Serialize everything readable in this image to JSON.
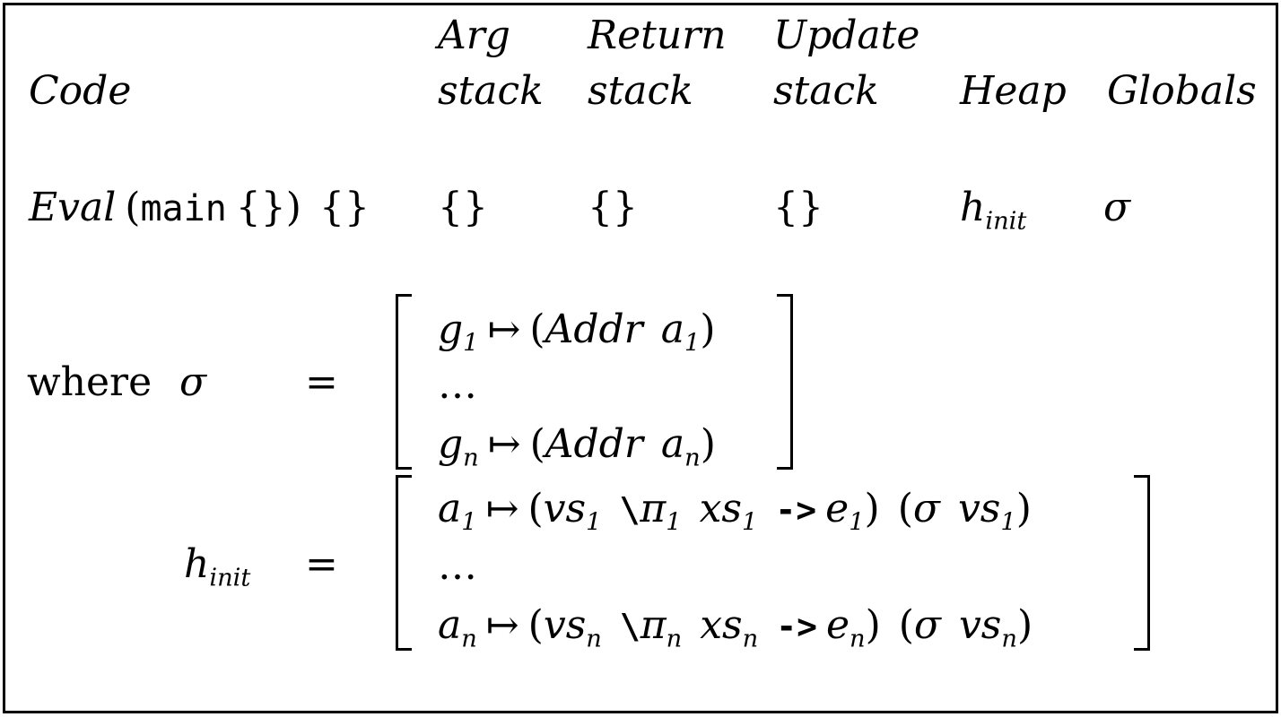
{
  "headers": {
    "code": "Code",
    "arg_top": "Arg",
    "arg_bottom": "stack",
    "return_top": "Return",
    "return_bottom": "stack",
    "update_top": "Update",
    "update_bottom": "stack",
    "heap": "Heap",
    "globals": "Globals"
  },
  "initial_state": {
    "eval": "Eval",
    "open_paren": "(",
    "main": "main",
    "empty_env": "{}",
    "close_paren": ")",
    "code_env": "{}",
    "arg_stack": "{}",
    "return_stack": "{}",
    "update_stack": "{}",
    "heap_base": "h",
    "heap_sub": "init",
    "globals": "σ"
  },
  "where_clause": {
    "where": "where",
    "sigma": "σ",
    "equals": "=",
    "sigma_rows": [
      {
        "g": "g",
        "g_sub": "1",
        "maps": "↦",
        "open": "(",
        "addr": "Addr",
        "a": "a",
        "a_sub": "1",
        "close": ")"
      },
      {
        "dots": "…"
      },
      {
        "g": "g",
        "g_sub": "n",
        "maps": "↦",
        "open": "(",
        "addr": "Addr",
        "a": "a",
        "a_sub": "n",
        "close": ")"
      }
    ],
    "h_base": "h",
    "h_sub": "init",
    "h_equals": "=",
    "heap_rows": [
      {
        "a": "a",
        "a_sub": "1",
        "maps": "↦",
        "open": "(",
        "vs": "vs",
        "vs_sub": "1",
        "lambda": "\\",
        "pi": "π",
        "pi_sub": "1",
        "xs": "xs",
        "xs_sub": "1",
        "arrow": "->",
        "e": "e",
        "e_sub": "1",
        "close": ")",
        "open2": "(",
        "sigma": "σ",
        "vs2": "vs",
        "vs2_sub": "1",
        "close2": ")"
      },
      {
        "dots": "…"
      },
      {
        "a": "a",
        "a_sub": "n",
        "maps": "↦",
        "open": "(",
        "vs": "vs",
        "vs_sub": "n",
        "lambda": "\\",
        "pi": "π",
        "pi_sub": "n",
        "xs": "xs",
        "xs_sub": "n",
        "arrow": "->",
        "e": "e",
        "e_sub": "n",
        "close": ")",
        "open2": "(",
        "sigma": "σ",
        "vs2": "vs",
        "vs2_sub": "n",
        "close2": ")"
      }
    ]
  }
}
